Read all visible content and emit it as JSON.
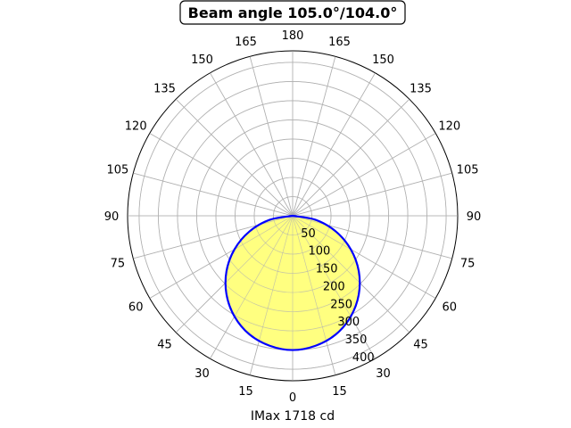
{
  "chart_data": {
    "type": "polar",
    "title": "Beam angle 105.0°/104.0°",
    "xlabel": "IMax 1718 cd",
    "angle_ticks": [
      "180",
      "165",
      "150",
      "135",
      "120",
      "105",
      "90",
      "75",
      "60",
      "45",
      "30",
      "15",
      "0"
    ],
    "radial_ticks": [
      50,
      100,
      150,
      200,
      250,
      300,
      350,
      400
    ],
    "rlim": [
      0,
      430
    ],
    "grid": true,
    "colors": {
      "curve": "#0000ff",
      "fill": "#ffff80",
      "grid": "#b0b0b0"
    },
    "series": [
      {
        "angles_deg": [
          0,
          10,
          20,
          30,
          40,
          50,
          60,
          70,
          80,
          90
        ],
        "values": [
          350,
          344,
          329,
          303,
          268,
          225,
          175,
          120,
          61,
          0
        ]
      }
    ]
  }
}
